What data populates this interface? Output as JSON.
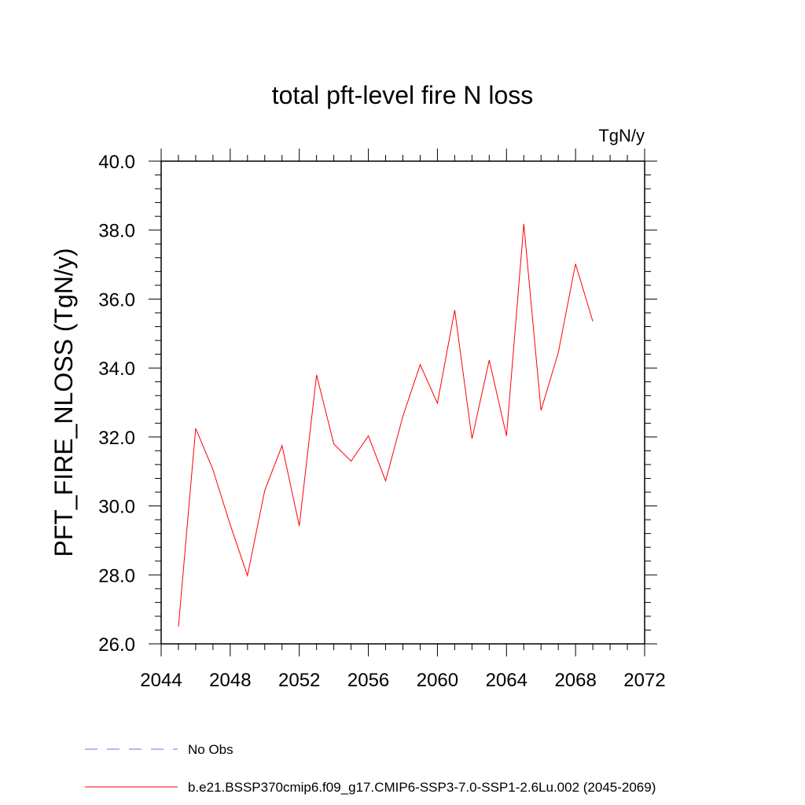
{
  "chart_data": {
    "type": "line",
    "title": "total pft-level fire N loss",
    "units": "TgN/y",
    "ylabel": "PFT_FIRE_NLOSS  (TgN/y)",
    "xlabel": "",
    "xlim": [
      2044,
      2072
    ],
    "ylim": [
      26.0,
      40.0
    ],
    "x_ticks": [
      "2044",
      "2048",
      "2052",
      "2056",
      "2060",
      "2064",
      "2068",
      "2072"
    ],
    "y_ticks": [
      "26.0",
      "28.0",
      "30.0",
      "32.0",
      "34.0",
      "36.0",
      "38.0",
      "40.0"
    ],
    "grid": false,
    "legend_position": "bottom",
    "legend": [
      {
        "label": "No Obs",
        "color": "#7b68ee",
        "style": "dashed"
      },
      {
        "label": "b.e21.BSSP370cmip6.f09_g17.CMIP6-SSP3-7.0-SSP1-2.6Lu.002 (2045-2069)",
        "color": "#ff0000",
        "style": "solid"
      }
    ],
    "series": [
      {
        "name": "b.e21.BSSP370cmip6.f09_g17.CMIP6-SSP3-7.0-SSP1-2.6Lu.002 (2045-2069)",
        "color": "#ff0000",
        "x": [
          2045,
          2046,
          2047,
          2048,
          2049,
          2050,
          2051,
          2052,
          2053,
          2054,
          2055,
          2056,
          2057,
          2058,
          2059,
          2060,
          2061,
          2062,
          2063,
          2064,
          2065,
          2066,
          2067,
          2068,
          2069
        ],
        "values": [
          26.5,
          32.25,
          31.05,
          29.45,
          27.98,
          30.45,
          31.75,
          29.42,
          33.8,
          31.8,
          31.3,
          32.03,
          30.73,
          32.6,
          34.1,
          32.98,
          35.68,
          31.95,
          34.23,
          32.03,
          38.18,
          32.77,
          34.45,
          37.02,
          35.35
        ]
      }
    ]
  }
}
